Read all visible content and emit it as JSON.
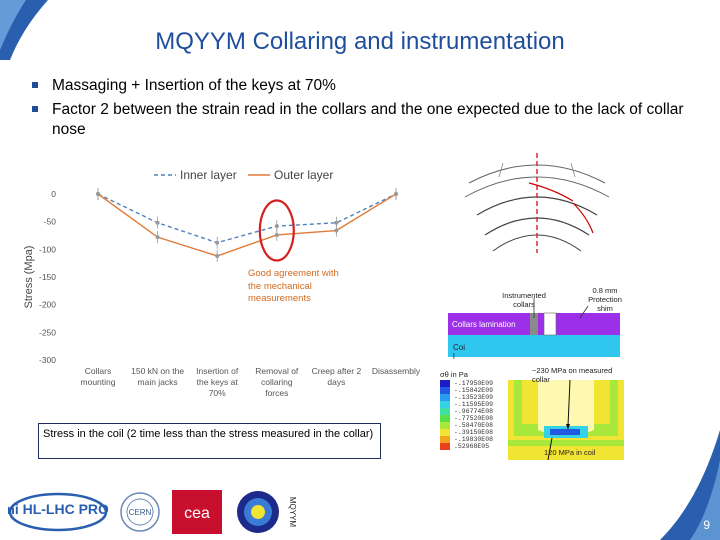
{
  "slide": {
    "title": "MQYYM Collaring and instrumentation",
    "bullets": [
      "Massaging + Insertion of the keys at 70%",
      "Factor 2 between the strain read in the collars and the one expected due to the lack of collar nose"
    ],
    "note": "Stress in the coil (2 time less than the stress measured in the collar)",
    "page_number": "9"
  },
  "chart_data": {
    "type": "line",
    "ylabel": "Stress (Mpa)",
    "xlabel": "",
    "ylim": [
      -300,
      0
    ],
    "yticks": [
      "0",
      "-50",
      "-100",
      "-150",
      "-200",
      "-250",
      "-300"
    ],
    "categories": [
      "Collars mounting",
      "150 kN on the main jacks",
      "Insertion of the keys at 70%",
      "Removal of collaring forces",
      "Creep after 2 days",
      "Disassembly"
    ],
    "series": [
      {
        "name": "Inner layer",
        "color": "#4f81bd",
        "dash": true,
        "values": [
          0,
          -52,
          -88,
          -58,
          -52,
          0
        ]
      },
      {
        "name": "Outer layer",
        "color": "#e07b39",
        "dash": false,
        "values": [
          0,
          -78,
          -112,
          -74,
          -66,
          0
        ]
      }
    ],
    "annotation": "Good agreement with the mechanical measurements",
    "highlight_color": "#d62020"
  },
  "figure": {
    "labels": {
      "instrumented": "Instrumented collars",
      "shim": "0.8 mm Protection shim",
      "lamination": "Collars lamination",
      "coil": "Coi l",
      "sigma": "σθ in Pa",
      "collar_stress": "~230 MPa on measured collar",
      "coil_stress": "120 MPa in coil"
    },
    "legend_values": [
      "-.17950E09",
      "-.15842E09",
      "-.13523E09",
      "-.11595E09",
      "-.96774E08",
      "-.77520E08",
      "-.58470E08",
      "-.39150E08",
      "-.19830E08",
      ".52968E05"
    ],
    "legend_colors": [
      "#1c1cc8",
      "#1f5ae0",
      "#2a9bf0",
      "#35d2e6",
      "#3fe0a0",
      "#58e048",
      "#a8e83a",
      "#f2e432",
      "#f2a41c",
      "#e8401a"
    ]
  },
  "logos": [
    "HiLumi HL-LHC PROJECT",
    "CERN",
    "cea",
    "MQYYM"
  ]
}
